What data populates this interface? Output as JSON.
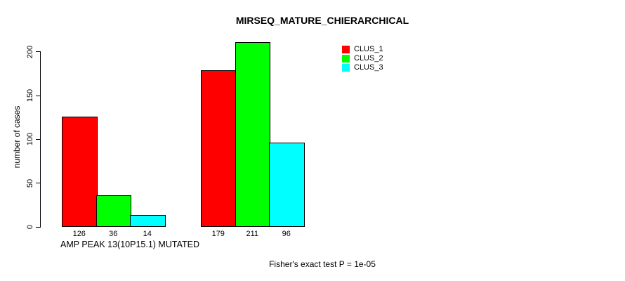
{
  "chart_data": {
    "type": "bar",
    "title": "MIRSEQ_MATURE_CHIERARCHICAL",
    "ylabel": "number of cases",
    "xlabel": "AMP PEAK 13(10P15.1) MUTATED",
    "footnote": "Fisher's exact test P = 1e-05",
    "yticks": [
      0,
      50,
      100,
      150,
      200
    ],
    "ylim": [
      0,
      211
    ],
    "grid": false,
    "legend_position": "top-right",
    "bar_value_labels": true,
    "n_groups": 2,
    "series": [
      {
        "name": "CLUS_1",
        "color": "#ff0000",
        "values": [
          126,
          179
        ]
      },
      {
        "name": "CLUS_2",
        "color": "#00ff00",
        "values": [
          36,
          211
        ]
      },
      {
        "name": "CLUS_3",
        "color": "#00ffff",
        "values": [
          14,
          96
        ]
      }
    ]
  },
  "colors": {
    "background": "#ffffff",
    "axis": "#000000",
    "text": "#000000"
  }
}
